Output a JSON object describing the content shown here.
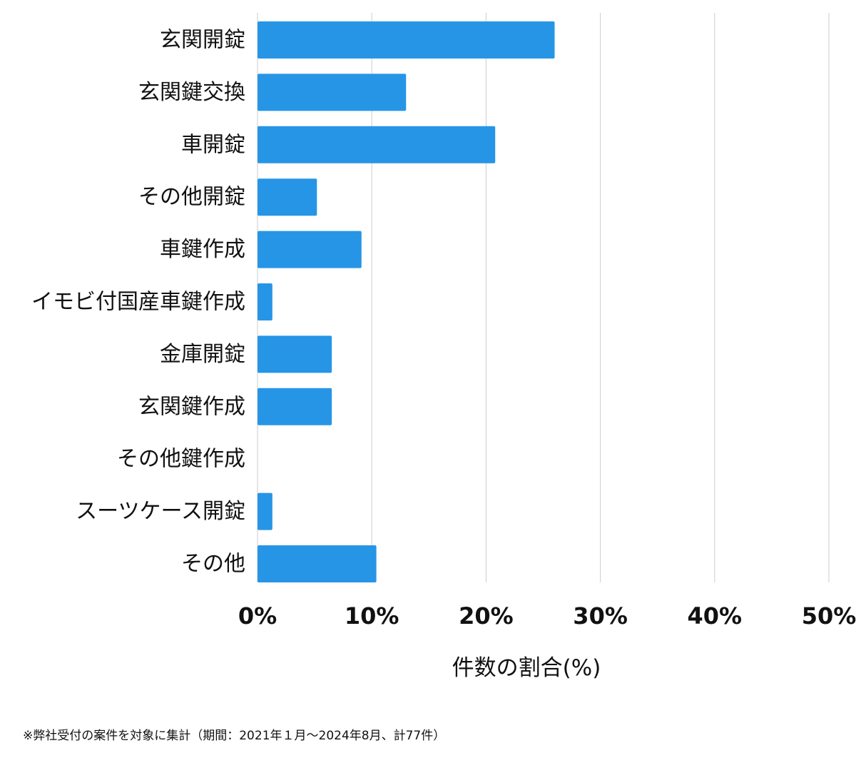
{
  "chart_data": {
    "type": "bar",
    "orientation": "horizontal",
    "categories": [
      "玄関開錠",
      "玄関鍵交換",
      "車開錠",
      "その他開錠",
      "車鍵作成",
      "イモビ付国産車鍵作成",
      "金庫開錠",
      "玄関鍵作成",
      "その他鍵作成",
      "スーツケース開錠",
      "その他"
    ],
    "values": [
      26.0,
      13.0,
      20.8,
      5.2,
      9.1,
      1.3,
      6.5,
      6.5,
      0,
      1.3,
      10.4
    ],
    "xlim": [
      0,
      50
    ],
    "xticks": [
      0,
      10,
      20,
      30,
      40,
      50
    ],
    "xtick_labels": [
      "0%",
      "10%",
      "20%",
      "30%",
      "40%",
      "50%"
    ],
    "xlabel": "件数の割合(%)",
    "ylabel": "",
    "title": "",
    "grid": "vertical",
    "bar_color": "#2795e6",
    "grid_color": "#cccccc"
  },
  "footnote": "※弊社受付の案件を対象に集計（期間：2021年１月〜2024年8月、計77件）"
}
